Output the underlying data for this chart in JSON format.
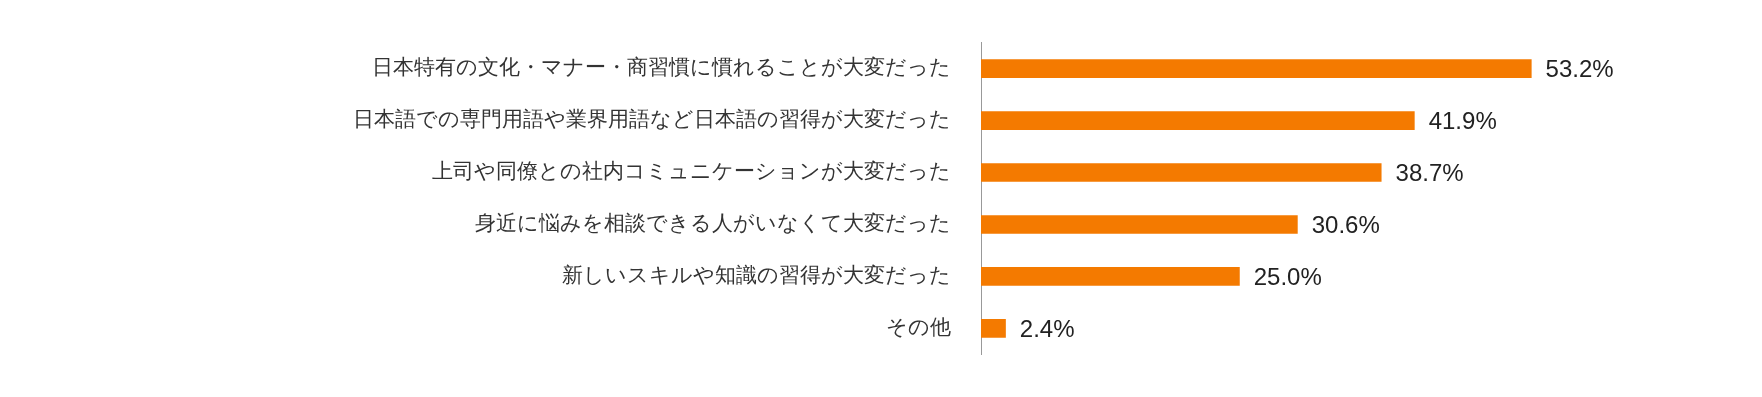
{
  "chart_data": {
    "type": "bar",
    "orientation": "horizontal",
    "categories": [
      "日本特有の文化・マナー・商習慣に慣れることが大変だった",
      "日本語での専門用語や業界用語など日本語の習得が大変だった",
      "上司や同僚との社内コミュニケーションが大変だった",
      "身近に悩みを相談できる人がいなくて大変だった",
      "新しいスキルや知識の習得が大変だった",
      "その他"
    ],
    "values": [
      53.2,
      41.9,
      38.7,
      30.6,
      25.0,
      2.4
    ],
    "value_labels": [
      "53.2%",
      "41.9%",
      "38.7%",
      "30.6%",
      "25.0%",
      "2.4%"
    ],
    "color": "#f47a00",
    "grid": false,
    "legend": false,
    "tick_labels": "y"
  }
}
